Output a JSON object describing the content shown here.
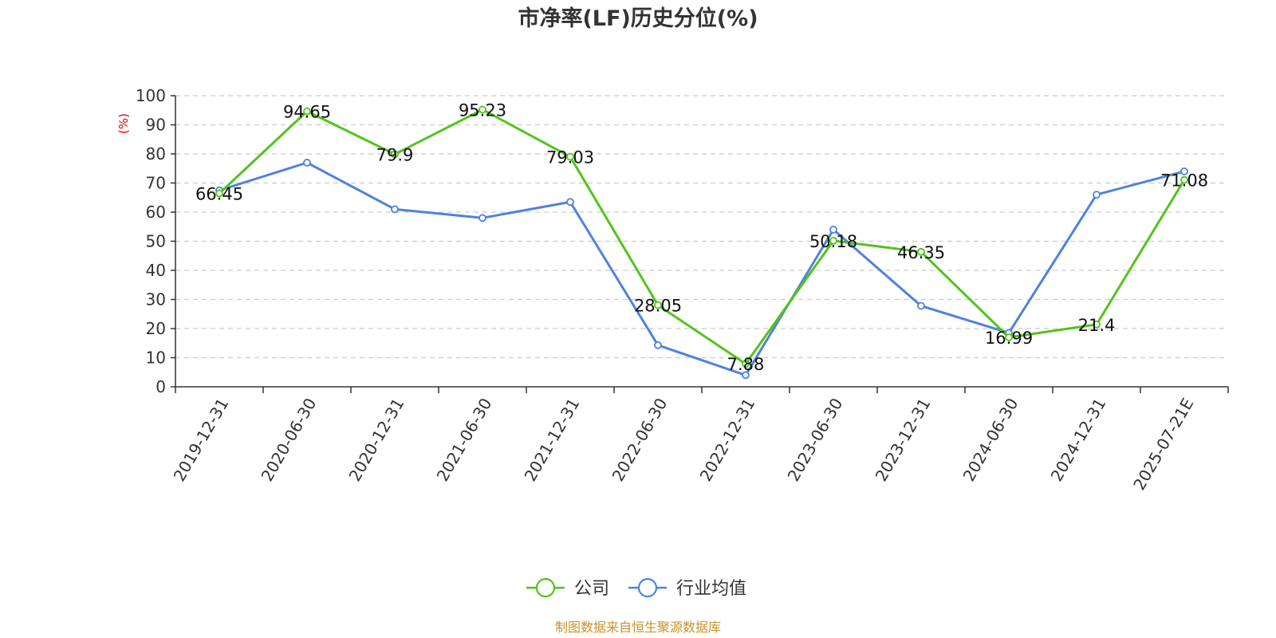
{
  "chart_data": {
    "type": "line",
    "title": "市净率(LF)历史分位(%)",
    "ylabel": "(%)",
    "ylim": [
      0,
      100
    ],
    "yticks": [
      0,
      10,
      20,
      30,
      40,
      50,
      60,
      70,
      80,
      90,
      100
    ],
    "grid": true,
    "legend_position": "bottom",
    "categories": [
      "2019-12-31",
      "2020-06-30",
      "2020-12-31",
      "2021-06-30",
      "2021-12-31",
      "2022-06-30",
      "2022-12-31",
      "2023-06-30",
      "2023-12-31",
      "2024-06-30",
      "2024-12-31",
      "2025-07-21E"
    ],
    "series": [
      {
        "name": "公司",
        "color": "#52c41a",
        "values": [
          66.45,
          94.65,
          79.9,
          95.23,
          79.03,
          28.05,
          7.88,
          50.18,
          46.35,
          16.99,
          21.4,
          71.08
        ],
        "labels": [
          "66.45",
          "94.65",
          "79.9",
          "95.23",
          "79.03",
          "28.05",
          "7.88",
          "50.18",
          "46.35",
          "16.99",
          "21.4",
          "71.08"
        ]
      },
      {
        "name": "行业均值",
        "color": "#4f82dd",
        "values": [
          67.5,
          77.0,
          61.0,
          58.0,
          63.5,
          14.3,
          4.0,
          54.0,
          27.8,
          18.5,
          66.0,
          74.0
        ]
      }
    ]
  },
  "source_note": "制图数据来自恒生聚源数据库"
}
